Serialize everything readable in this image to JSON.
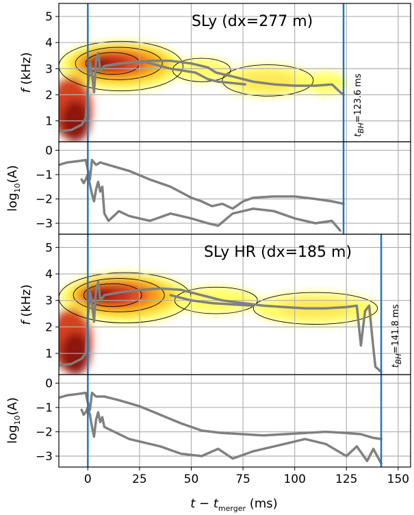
{
  "chart_data": [
    {
      "type": "heatmap",
      "title": "SLy (dx=277 m)",
      "ylabel_main": "f",
      "ylabel_unit": "(kHz)",
      "xlim": [
        -14,
        156
      ],
      "ylim": [
        0.2,
        5.5
      ],
      "yticks": [
        "1",
        "2",
        "3",
        "4",
        "5"
      ],
      "ytick_values": [
        1,
        2,
        3,
        4,
        5
      ],
      "t_merger_line": 0,
      "t_bh": 123.6,
      "t_bh_prefix": "t",
      "t_bh_sub": "BH",
      "t_bh_label": "=123.6 ms",
      "blobs": [
        {
          "cx": 16,
          "cy": 3.1,
          "rx": 30,
          "ry": 0.95,
          "color": "#ffff66"
        },
        {
          "cx": 16,
          "cy": 3.15,
          "rx": 25,
          "ry": 0.75,
          "color": "#fcd028"
        },
        {
          "cx": 15,
          "cy": 3.2,
          "rx": 20,
          "ry": 0.58,
          "color": "#f79a18"
        },
        {
          "cx": 13,
          "cy": 3.2,
          "rx": 15,
          "ry": 0.45,
          "color": "#e25020"
        },
        {
          "cx": 10,
          "cy": 3.2,
          "rx": 10,
          "ry": 0.33,
          "color": "#c42a1c"
        },
        {
          "cx": 6,
          "cy": 3.2,
          "rx": 5,
          "ry": 0.22,
          "color": "#8e1410"
        },
        {
          "cx": -8,
          "cy": 1.5,
          "rx": 10,
          "ry": 1.2,
          "color": "#d64020"
        },
        {
          "cx": -6,
          "cy": 1.0,
          "rx": 7,
          "ry": 0.8,
          "color": "#8e1410"
        },
        {
          "cx": 55,
          "cy": 2.95,
          "rx": 14,
          "ry": 0.45,
          "color": "#ffff66"
        },
        {
          "cx": 87,
          "cy": 2.55,
          "rx": 22,
          "ry": 0.6,
          "color": "#ffff66"
        },
        {
          "cx": 87,
          "cy": 2.5,
          "rx": 14,
          "ry": 0.4,
          "color": "#fde85a"
        },
        {
          "cx": 115,
          "cy": 2.45,
          "rx": 10,
          "ry": 0.45,
          "color": "#ffff66"
        }
      ],
      "contours": [
        {
          "cx": 16,
          "cy": 3.1,
          "rx": 30,
          "ry": 0.95
        },
        {
          "cx": 15,
          "cy": 3.2,
          "rx": 21,
          "ry": 0.62
        },
        {
          "cx": 12,
          "cy": 3.2,
          "rx": 13,
          "ry": 0.42
        },
        {
          "cx": 87,
          "cy": 2.55,
          "rx": 22,
          "ry": 0.6
        },
        {
          "cx": 55,
          "cy": 2.95,
          "rx": 14,
          "ry": 0.45
        }
      ],
      "freq_trace": [
        [
          -14,
          0.6
        ],
        [
          -8,
          0.65
        ],
        [
          -3,
          0.85
        ],
        [
          -1,
          1.1
        ],
        [
          0,
          2.3
        ],
        [
          1,
          3.2
        ],
        [
          2,
          2.8
        ],
        [
          3,
          2.1
        ],
        [
          4,
          3.3
        ],
        [
          5,
          3.6
        ],
        [
          6,
          2.9
        ],
        [
          8,
          3.1
        ],
        [
          12,
          3.15
        ],
        [
          20,
          3.25
        ],
        [
          30,
          3.3
        ],
        [
          40,
          3.3
        ],
        [
          50,
          3.2
        ],
        [
          58,
          3.05
        ],
        [
          62,
          2.85
        ],
        [
          70,
          2.7
        ],
        [
          80,
          2.5
        ],
        [
          90,
          2.4
        ],
        [
          100,
          2.35
        ],
        [
          110,
          2.35
        ],
        [
          118,
          2.4
        ],
        [
          122,
          2.1
        ],
        [
          123.6,
          2.0
        ]
      ],
      "freq_trace2": [
        [
          6,
          2.9
        ],
        [
          8,
          3.1
        ],
        [
          15,
          3.2
        ],
        [
          28,
          3.25
        ],
        [
          40,
          3.0
        ],
        [
          52,
          2.85
        ],
        [
          58,
          2.6
        ],
        [
          63,
          2.5
        ],
        [
          70,
          2.45
        ],
        [
          76,
          2.4
        ]
      ]
    },
    {
      "type": "line",
      "ylabel": "log10(A)",
      "ylabel_prefix": "log",
      "ylabel_sub": "10",
      "ylabel_suffix": "(A)",
      "xlim": [
        -14,
        156
      ],
      "ylim": [
        -3.45,
        0.35
      ],
      "yticks": [
        "0",
        "−1",
        "−2",
        "−3"
      ],
      "ytick_values": [
        0,
        -1,
        -2,
        -3
      ],
      "t_merger_line": 0,
      "t_bh": 123.6,
      "series": [
        {
          "points": [
            [
              -14,
              -0.6
            ],
            [
              -10,
              -0.5
            ],
            [
              -5,
              -0.45
            ],
            [
              -1,
              -0.4
            ],
            [
              0,
              -0.8
            ],
            [
              1,
              -1.2
            ],
            [
              2,
              -0.4
            ],
            [
              4,
              -0.6
            ],
            [
              6,
              -0.5
            ],
            [
              10,
              -0.6
            ],
            [
              20,
              -0.85
            ],
            [
              30,
              -1.2
            ],
            [
              40,
              -1.5
            ],
            [
              50,
              -1.95
            ],
            [
              55,
              -2.1
            ],
            [
              60,
              -2.3
            ],
            [
              65,
              -2.2
            ],
            [
              70,
              -2.4
            ],
            [
              75,
              -2.1
            ],
            [
              80,
              -1.95
            ],
            [
              90,
              -1.9
            ],
            [
              100,
              -1.9
            ],
            [
              110,
              -2.0
            ],
            [
              118,
              -2.1
            ],
            [
              123.6,
              -2.2
            ]
          ]
        },
        {
          "points": [
            [
              -3,
              -1.2
            ],
            [
              -2,
              -1.35
            ],
            [
              -1,
              -1.2
            ],
            [
              0,
              -1.0
            ],
            [
              1,
              -1.4
            ],
            [
              2,
              -1.8
            ],
            [
              3,
              -2.1
            ],
            [
              4,
              -1.6
            ],
            [
              5,
              -1.3
            ],
            [
              6,
              -1.7
            ],
            [
              7,
              -1.5
            ],
            [
              8,
              -2.6
            ],
            [
              10,
              -2.9
            ],
            [
              15,
              -2.5
            ],
            [
              20,
              -2.7
            ],
            [
              30,
              -2.9
            ],
            [
              40,
              -2.6
            ],
            [
              50,
              -2.8
            ],
            [
              58,
              -3.0
            ],
            [
              63,
              -3.1
            ],
            [
              70,
              -2.6
            ],
            [
              80,
              -2.4
            ],
            [
              90,
              -2.5
            ],
            [
              100,
              -2.8
            ],
            [
              110,
              -3.0
            ],
            [
              118,
              -2.9
            ],
            [
              122,
              -3.3
            ]
          ]
        }
      ]
    },
    {
      "type": "heatmap",
      "title": "SLy HR (dx=185 m)",
      "ylabel_main": "f",
      "ylabel_unit": "(kHz)",
      "xlim": [
        -14,
        156
      ],
      "ylim": [
        0.2,
        5.5
      ],
      "yticks": [
        "1",
        "2",
        "3",
        "4",
        "5"
      ],
      "ytick_values": [
        1,
        2,
        3,
        4,
        5
      ],
      "t_merger_line": 0,
      "t_bh": 141.8,
      "t_bh_prefix": "t",
      "t_bh_sub": "BH",
      "t_bh_label": "=141.8 ms",
      "blobs": [
        {
          "cx": 18,
          "cy": 3.1,
          "rx": 32,
          "ry": 0.95,
          "color": "#ffff66"
        },
        {
          "cx": 17,
          "cy": 3.15,
          "rx": 26,
          "ry": 0.75,
          "color": "#fcd028"
        },
        {
          "cx": 15,
          "cy": 3.2,
          "rx": 21,
          "ry": 0.6,
          "color": "#f79a18"
        },
        {
          "cx": 13,
          "cy": 3.2,
          "rx": 16,
          "ry": 0.47,
          "color": "#e25020"
        },
        {
          "cx": 10,
          "cy": 3.2,
          "rx": 11,
          "ry": 0.35,
          "color": "#c42a1c"
        },
        {
          "cx": 6,
          "cy": 3.2,
          "rx": 6,
          "ry": 0.23,
          "color": "#8e1410"
        },
        {
          "cx": -8,
          "cy": 1.5,
          "rx": 10,
          "ry": 1.2,
          "color": "#d64020"
        },
        {
          "cx": -6,
          "cy": 1.0,
          "rx": 7,
          "ry": 0.8,
          "color": "#8e1410"
        },
        {
          "cx": 62,
          "cy": 3.0,
          "rx": 20,
          "ry": 0.5,
          "color": "#ffff66"
        },
        {
          "cx": 110,
          "cy": 2.7,
          "rx": 30,
          "ry": 0.6,
          "color": "#ffff66"
        },
        {
          "cx": 110,
          "cy": 2.7,
          "rx": 18,
          "ry": 0.38,
          "color": "#fde85a"
        }
      ],
      "contours": [
        {
          "cx": 18,
          "cy": 3.1,
          "rx": 32,
          "ry": 0.95
        },
        {
          "cx": 15,
          "cy": 3.2,
          "rx": 22,
          "ry": 0.63
        },
        {
          "cx": 12,
          "cy": 3.2,
          "rx": 14,
          "ry": 0.43
        },
        {
          "cx": 62,
          "cy": 3.0,
          "rx": 20,
          "ry": 0.5
        },
        {
          "cx": 110,
          "cy": 2.7,
          "rx": 30,
          "ry": 0.6
        }
      ],
      "freq_trace": [
        [
          -14,
          0.55
        ],
        [
          -8,
          0.6
        ],
        [
          -3,
          0.8
        ],
        [
          -1,
          1.0
        ],
        [
          0,
          2.4
        ],
        [
          1,
          3.3
        ],
        [
          2,
          2.9
        ],
        [
          3,
          2.2
        ],
        [
          4,
          3.4
        ],
        [
          5,
          3.7
        ],
        [
          6,
          3.0
        ],
        [
          8,
          3.2
        ],
        [
          15,
          3.3
        ],
        [
          25,
          3.4
        ],
        [
          35,
          3.45
        ],
        [
          45,
          3.4
        ],
        [
          55,
          3.2
        ],
        [
          65,
          3.0
        ],
        [
          75,
          2.9
        ],
        [
          85,
          2.8
        ],
        [
          95,
          2.75
        ],
        [
          105,
          2.7
        ],
        [
          115,
          2.7
        ],
        [
          125,
          2.75
        ],
        [
          130,
          2.8
        ],
        [
          132,
          1.3
        ],
        [
          134,
          2.6
        ],
        [
          136,
          2.8
        ],
        [
          138,
          1.2
        ],
        [
          139,
          0.5
        ],
        [
          141.8,
          0.3
        ]
      ],
      "freq_trace2": [
        [
          40,
          3.2
        ],
        [
          50,
          3.0
        ],
        [
          60,
          2.9
        ],
        [
          70,
          2.85
        ],
        [
          80,
          2.8
        ]
      ]
    },
    {
      "type": "line",
      "ylabel": "log10(A)",
      "ylabel_prefix": "log",
      "ylabel_sub": "10",
      "ylabel_suffix": "(A)",
      "xlim": [
        -14,
        156
      ],
      "ylim": [
        -3.45,
        0.35
      ],
      "yticks": [
        "0",
        "−1",
        "−2",
        "−3"
      ],
      "ytick_values": [
        0,
        -1,
        -2,
        -3
      ],
      "t_merger_line": 0,
      "t_bh": 141.8,
      "series": [
        {
          "points": [
            [
              -14,
              -0.6
            ],
            [
              -10,
              -0.5
            ],
            [
              -5,
              -0.45
            ],
            [
              -1,
              -0.4
            ],
            [
              0,
              -0.8
            ],
            [
              1,
              -1.1
            ],
            [
              2,
              -0.4
            ],
            [
              4,
              -0.55
            ],
            [
              8,
              -0.55
            ],
            [
              15,
              -0.7
            ],
            [
              25,
              -0.95
            ],
            [
              35,
              -1.3
            ],
            [
              45,
              -1.65
            ],
            [
              55,
              -1.95
            ],
            [
              65,
              -2.05
            ],
            [
              75,
              -2.1
            ],
            [
              85,
              -2.15
            ],
            [
              95,
              -2.1
            ],
            [
              105,
              -2.05
            ],
            [
              115,
              -2.0
            ],
            [
              125,
              -2.05
            ],
            [
              132,
              -2.1
            ],
            [
              138,
              -2.25
            ],
            [
              141.8,
              -2.3
            ]
          ]
        },
        {
          "points": [
            [
              -3,
              -1.1
            ],
            [
              -2,
              -1.3
            ],
            [
              -1,
              -1.2
            ],
            [
              0,
              -1.0
            ],
            [
              1,
              -1.3
            ],
            [
              2,
              -1.8
            ],
            [
              3,
              -2.2
            ],
            [
              4,
              -1.5
            ],
            [
              5,
              -1.2
            ],
            [
              6,
              -1.6
            ],
            [
              7,
              -1.4
            ],
            [
              8,
              -1.8
            ],
            [
              20,
              -2.3
            ],
            [
              35,
              -2.6
            ],
            [
              45,
              -2.9
            ],
            [
              55,
              -3.0
            ],
            [
              63,
              -2.7
            ],
            [
              70,
              -3.1
            ],
            [
              80,
              -2.8
            ],
            [
              95,
              -2.5
            ],
            [
              105,
              -2.3
            ],
            [
              115,
              -2.5
            ],
            [
              125,
              -3.0
            ],
            [
              130,
              -2.6
            ],
            [
              135,
              -3.2
            ],
            [
              138,
              -2.7
            ],
            [
              141.8,
              -3.3
            ]
          ]
        }
      ]
    }
  ],
  "x_axis": {
    "ticks": [
      "0",
      "25",
      "50",
      "75",
      "100",
      "125",
      "150"
    ],
    "tick_values": [
      0,
      25,
      50,
      75,
      100,
      125,
      150
    ],
    "label_prefix": "t − t",
    "label_sub": "merger",
    "label_suffix": " (ms)"
  },
  "colors": {
    "grid": "#b0b0b0",
    "trace": "#808080",
    "merger_line": "#1f77b4",
    "bh_line": "#1f77b4"
  }
}
